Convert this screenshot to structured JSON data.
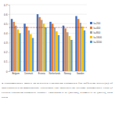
{
  "chart_data": {
    "type": "bar",
    "categories": [
      "Belgium",
      "Denmark",
      "Estonia",
      "Netherlands",
      "Norway",
      "Sweden"
    ],
    "series": [
      {
        "name": "k=200",
        "color": "#4472c4",
        "values": [
          0.55,
          0.5,
          0.6,
          0.52,
          0.48,
          0.58
        ]
      },
      {
        "name": "k=400",
        "color": "#ed7d31",
        "values": [
          0.52,
          0.47,
          0.57,
          0.5,
          0.45,
          0.55
        ]
      },
      {
        "name": "k=800",
        "color": "#a5a5a5",
        "values": [
          0.48,
          0.43,
          0.54,
          0.46,
          0.41,
          0.51
        ]
      },
      {
        "name": "k=1600",
        "color": "#ffc000",
        "values": [
          0.44,
          0.39,
          0.5,
          0.42,
          0.37,
          0.47
        ]
      },
      {
        "name": "k=3200",
        "color": "#5b9bd5",
        "values": [
          0.4,
          0.35,
          0.46,
          0.38,
          0.33,
          0.43
        ]
      }
    ],
    "average_line": 0.46,
    "ylim": [
      0,
      0.7
    ],
    "yticks": [
      0,
      0.1,
      0.2,
      0.3,
      0.4,
      0.5,
      0.6,
      0.7
    ],
    "grid": true,
    "legend": "right",
    "annotations": [
      "2 Dissimilarity index in selected European countries for different sizes (k) of",
      "individualized neighborhoods. Horizontal line indicates the average dissimilarity value (f",
      "elected European countries. Source: Andersson et al. (2018b), Kramer et al. (2019), own",
      "ulation"
    ]
  }
}
